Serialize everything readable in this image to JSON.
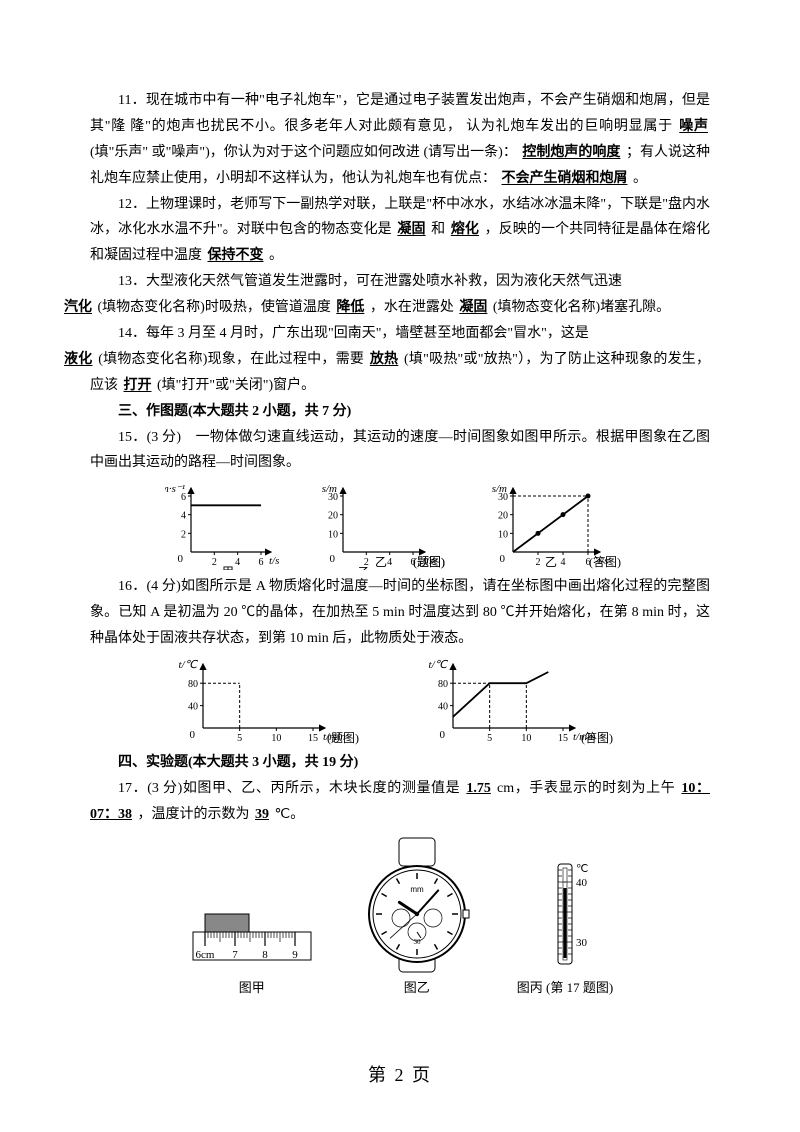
{
  "q11": {
    "text1": "11．现在城市中有一种\"电子礼炮车\"，它是通过电子装置发出炮声，不会产生硝烟和炮屑，但是其\"隆 隆\"的炮声也扰民不小。很多老年人对此颇有意见， 认为礼炮车发出的巨响明显属于",
    "blank1": "噪声",
    "text2": "(填\"乐声\" 或\"噪声\")，你认为对于这个问题应如何改进  (请写出一条)：",
    "blank2": "控制炮声的响度",
    "text3": "；有人说这种礼炮车应禁止使用，小明却不这样认为，他认为礼炮车也有优点：",
    "blank3": "不会产生硝烟和炮屑",
    "text4": "。"
  },
  "q12": {
    "text1": "12．上物理课时，老师写下一副热学对联，上联是\"杯中冰水，水结冰冰温未降\"，下联是\"盘内水冰，冰化水水温不升\"。对联中包含的物态变化是",
    "blank1": "凝固",
    "text2": "和",
    "blank2": "熔化",
    "text3": "，反映的一个共同特征是晶体在熔化和凝固过程中温度",
    "blank3": "保持不变",
    "text4": "。"
  },
  "q13": {
    "text1": "13．大型液化天然气管道发生泄露时，可在泄露处喷水补救，因为液化天然气迅速",
    "blank1": "汽化",
    "text2": "(填物态变化名称)时吸热，使管道温度",
    "blank2": "降低",
    "text3": "，水在泄露处",
    "blank3": "凝固",
    "text4": "(填物态变化名称)堵塞孔隙。"
  },
  "q14": {
    "text1": "14．每年 3 月至 4 月时，广东出现\"回南天\"，墙壁甚至地面都会\"冒水\"，这是",
    "blank1": "液化",
    "text2": "(填物态变化名称)现象，在此过程中，需要",
    "blank2": "放热",
    "text3": "(填\"吸热\"或\"放热\"），为了防止这种现象的发生，应该",
    "blank3": "打开",
    "text4": "(填\"打开\"或\"关闭\")窗户。"
  },
  "section3": "三、作图题(本大题共 2 小题，共 7 分)",
  "q15": {
    "text": "15．(3 分)　一物体做匀速直线运动，其运动的速度—时间图象如图甲所示。根据甲图象在乙图中画出其运动的路程—时间图象。",
    "chart1": {
      "ylabel": "v/m·s⁻¹",
      "xlabel": "t/s",
      "ymax": 6,
      "yticks": [
        2,
        4,
        6
      ],
      "xticks": [
        2,
        4,
        6
      ],
      "line_y": 5,
      "caption": "甲"
    },
    "chart2": {
      "ylabel": "s/m",
      "xlabel": "t/s",
      "ymax": 30,
      "yticks": [
        10,
        20,
        30
      ],
      "xticks": [
        2,
        4,
        6
      ],
      "caption": "乙",
      "caption2": "(题图)"
    },
    "chart3": {
      "ylabel": "s/m",
      "xlabel": "t/s",
      "ymax": 30,
      "yticks": [
        10,
        20,
        30
      ],
      "xticks": [
        2,
        4,
        6
      ],
      "line": [
        [
          0,
          0
        ],
        [
          6,
          30
        ]
      ],
      "points": [
        [
          2,
          10
        ],
        [
          4,
          20
        ],
        [
          6,
          30
        ]
      ],
      "dashx": 6,
      "dashy": 30,
      "caption": "乙",
      "caption2": "(答图)"
    }
  },
  "q16": {
    "text": "16．(4 分)如图所示是 A 物质熔化时温度—时间的坐标图，请在坐标图中画出熔化过程的完整图象。已知 A 是初温为 20 ℃的晶体，在加热至 5 min 时温度达到 80 ℃并开始熔化，在第 8 min 时，这种晶体处于固液共存状态，到第 10 min 后，此物质处于液态。",
    "chart1": {
      "ylabel": "t/℃",
      "xlabel": "t/min",
      "yticks": [
        40,
        80
      ],
      "xticks": [
        5,
        10,
        15
      ],
      "dashx": 5,
      "dashy": 80,
      "caption": "(题图)"
    },
    "chart2": {
      "ylabel": "t/℃",
      "xlabel": "t/min",
      "yticks": [
        40,
        80
      ],
      "xticks": [
        5,
        10,
        15
      ],
      "line": [
        [
          0,
          20
        ],
        [
          5,
          80
        ],
        [
          10,
          80
        ],
        [
          13,
          100
        ]
      ],
      "dashx1": 5,
      "dashx2": 10,
      "dashy": 80,
      "caption": "(答图)"
    }
  },
  "section4": "四、实验题(本大题共 3 小题，共 19 分)",
  "q17": {
    "text1": "17．(3 分)如图甲、乙、丙所示，木块长度的测量值是",
    "blank1": "1.75",
    "text2": "cm，手表显示的时刻为上午",
    "blank2": "10：07：38",
    "text3": "，温度计的示数为",
    "blank3": "39",
    "text4": "℃。",
    "ruler": {
      "start": 6,
      "ticks": [
        6,
        7,
        8,
        9
      ],
      "label": "6cm",
      "caption": "图甲"
    },
    "watch": {
      "mfr": "mm",
      "caption": "图乙"
    },
    "thermo": {
      "marks": [
        30,
        40
      ],
      "unit": "℃",
      "caption": "图丙",
      "caption2": "(第 17 题图)"
    }
  },
  "footer": "第 2 页",
  "colors": {
    "text": "#000000",
    "bg": "#ffffff",
    "grid": "#000000",
    "block": "#808080"
  }
}
